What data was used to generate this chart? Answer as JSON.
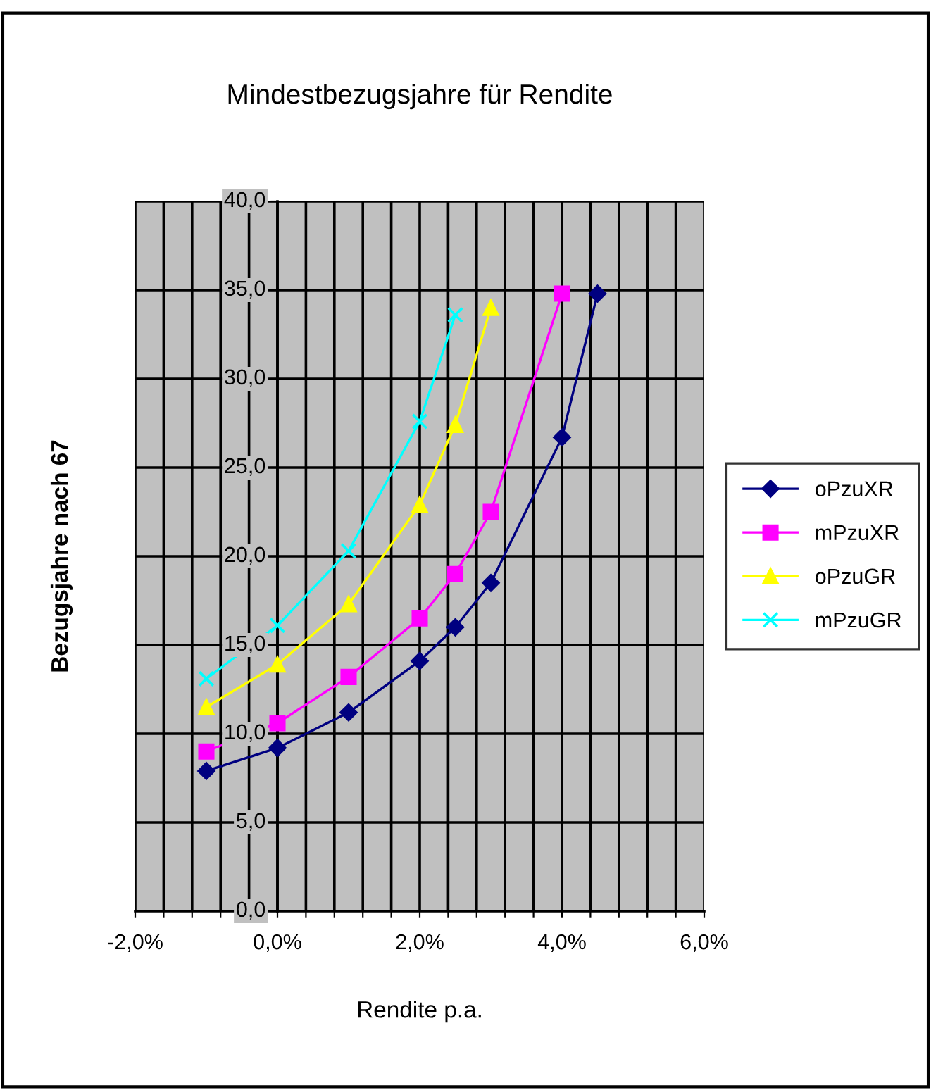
{
  "chart_data": {
    "type": "line",
    "title": "Mindestbezugsjahre für Rendite",
    "xlabel": "Rendite p.a.",
    "ylabel": "Bezugsjahre nach 67",
    "series": [
      {
        "name": "oPzuXR",
        "color": "#000080",
        "marker": "diamond",
        "x": [
          -1,
          0,
          1,
          2,
          2.5,
          3,
          4,
          4.5
        ],
        "values": [
          7.9,
          9.2,
          11.2,
          14.1,
          16.0,
          18.5,
          26.7,
          34.8
        ]
      },
      {
        "name": "mPzuXR",
        "color": "#ff00ff",
        "marker": "square",
        "x": [
          -1,
          0,
          1,
          2,
          2.5,
          3,
          4
        ],
        "values": [
          9.0,
          10.6,
          13.2,
          16.5,
          19.0,
          22.5,
          34.8
        ]
      },
      {
        "name": "oPzuGR",
        "color": "#ffff00",
        "marker": "triangle",
        "x": [
          -1,
          0,
          1,
          2,
          2.5,
          3
        ],
        "values": [
          11.5,
          13.9,
          17.3,
          22.9,
          27.4,
          34.0
        ]
      },
      {
        "name": "mPzuGR",
        "color": "#00ffff",
        "marker": "cross",
        "x": [
          -1,
          0,
          1,
          2,
          2.5
        ],
        "values": [
          13.1,
          16.1,
          20.3,
          27.6,
          33.6
        ]
      }
    ],
    "xlim": [
      -2,
      6
    ],
    "xticks": [
      {
        "value": -2,
        "label": "-2,0%"
      },
      {
        "value": -1.6,
        "label": null
      },
      {
        "value": -1.2,
        "label": null
      },
      {
        "value": -0.8,
        "label": null
      },
      {
        "value": -0.4,
        "label": null
      },
      {
        "value": 0,
        "label": "0,0%"
      },
      {
        "value": 0.4,
        "label": null
      },
      {
        "value": 0.8,
        "label": null
      },
      {
        "value": 1.2,
        "label": null
      },
      {
        "value": 1.6,
        "label": null
      },
      {
        "value": 2,
        "label": "2,0%"
      },
      {
        "value": 2.4,
        "label": null
      },
      {
        "value": 2.8,
        "label": null
      },
      {
        "value": 3.2,
        "label": null
      },
      {
        "value": 3.6,
        "label": null
      },
      {
        "value": 4,
        "label": "4,0%"
      },
      {
        "value": 4.4,
        "label": null
      },
      {
        "value": 4.8,
        "label": null
      },
      {
        "value": 5.2,
        "label": null
      },
      {
        "value": 5.6,
        "label": null
      },
      {
        "value": 6,
        "label": "6,0%"
      }
    ],
    "ylim": [
      0,
      40
    ],
    "yticks": [
      {
        "value": 0,
        "label": "0,0"
      },
      {
        "value": 5,
        "label": "5,0"
      },
      {
        "value": 10,
        "label": "10,0"
      },
      {
        "value": 15,
        "label": "15,0"
      },
      {
        "value": 20,
        "label": "20,0"
      },
      {
        "value": 25,
        "label": "25,0"
      },
      {
        "value": 30,
        "label": "30,0"
      },
      {
        "value": 35,
        "label": "35,0"
      },
      {
        "value": 40,
        "label": "40,0"
      }
    ],
    "grid": true,
    "legend": "right",
    "line_style": "solid"
  }
}
